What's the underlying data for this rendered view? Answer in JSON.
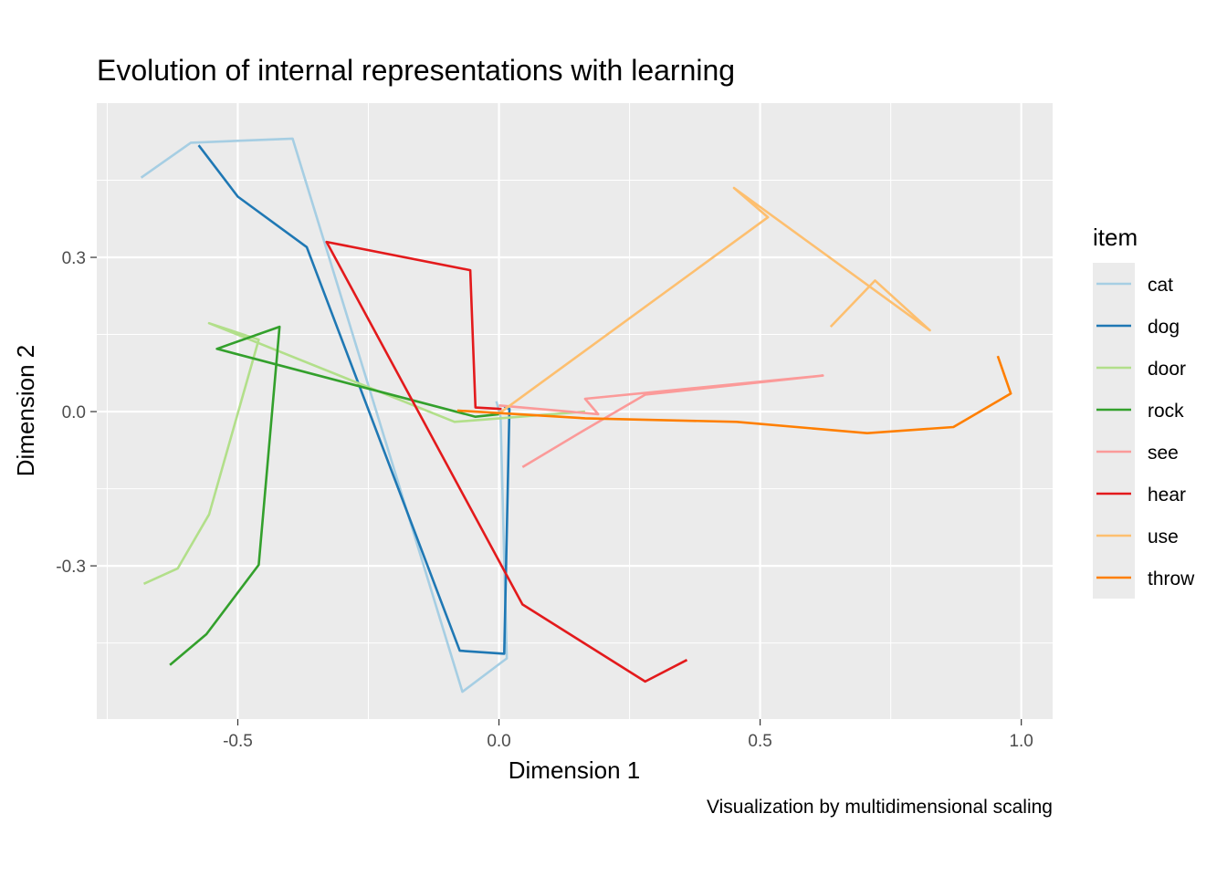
{
  "chart_data": {
    "type": "line",
    "title": "Evolution of internal representations with learning",
    "xlabel": "Dimension 1",
    "ylabel": "Dimension 2",
    "caption": "Visualization by multidimensional scaling",
    "xlim": [
      -0.77,
      1.06
    ],
    "ylim": [
      -0.598,
      0.6
    ],
    "x_ticks": [
      -0.5,
      0.0,
      0.5,
      1.0
    ],
    "x_tick_labels": [
      "-0.5",
      "0.0",
      "0.5",
      "1.0"
    ],
    "y_ticks": [
      -0.3,
      0.0,
      0.3
    ],
    "y_tick_labels": [
      "-0.3",
      "0.0",
      "0.3"
    ],
    "grid": true,
    "background": "#ebebeb",
    "legend": {
      "title": "item",
      "position": "right"
    },
    "series": [
      {
        "name": "cat",
        "color": "#a6cee3",
        "points": [
          [
            -0.685,
            0.455
          ],
          [
            -0.59,
            0.523
          ],
          [
            -0.395,
            0.531
          ],
          [
            -0.07,
            -0.545
          ],
          [
            0.015,
            -0.48
          ],
          [
            0.003,
            -0.01
          ],
          [
            -0.005,
            0.02
          ]
        ]
      },
      {
        "name": "dog",
        "color": "#1f78b4",
        "points": [
          [
            -0.575,
            0.518
          ],
          [
            -0.5,
            0.418
          ],
          [
            -0.368,
            0.32
          ],
          [
            -0.075,
            -0.465
          ],
          [
            0.01,
            -0.471
          ],
          [
            0.02,
            0.005
          ],
          [
            0.01,
            0.01
          ]
        ]
      },
      {
        "name": "door",
        "color": "#b2df8a",
        "points": [
          [
            -0.68,
            -0.335
          ],
          [
            -0.615,
            -0.305
          ],
          [
            -0.555,
            -0.2
          ],
          [
            -0.46,
            0.14
          ],
          [
            -0.555,
            0.172
          ],
          [
            -0.085,
            -0.02
          ],
          [
            0.165,
            0.0
          ]
        ]
      },
      {
        "name": "rock",
        "color": "#33a02c",
        "points": [
          [
            -0.63,
            -0.493
          ],
          [
            -0.56,
            -0.433
          ],
          [
            -0.46,
            -0.298
          ],
          [
            -0.42,
            0.165
          ],
          [
            -0.54,
            0.122
          ],
          [
            -0.045,
            -0.01
          ],
          [
            0.0,
            -0.005
          ]
        ]
      },
      {
        "name": "see",
        "color": "#fb9a99",
        "points": [
          [
            0.045,
            -0.108
          ],
          [
            0.16,
            -0.038
          ],
          [
            0.28,
            0.033
          ],
          [
            0.62,
            0.07
          ],
          [
            0.165,
            0.025
          ],
          [
            0.19,
            -0.005
          ],
          [
            0.0,
            0.012
          ]
        ]
      },
      {
        "name": "hear",
        "color": "#e31a1c",
        "points": [
          [
            0.36,
            -0.483
          ],
          [
            0.28,
            -0.525
          ],
          [
            0.045,
            -0.375
          ],
          [
            -0.33,
            0.33
          ],
          [
            -0.055,
            0.275
          ],
          [
            -0.045,
            0.008
          ],
          [
            0.005,
            0.005
          ]
        ]
      },
      {
        "name": "use",
        "color": "#fdbf6f",
        "points": [
          [
            0.635,
            0.165
          ],
          [
            0.72,
            0.255
          ],
          [
            0.825,
            0.158
          ],
          [
            0.45,
            0.435
          ],
          [
            0.515,
            0.378
          ],
          [
            0.005,
            0.0
          ],
          [
            0.0,
            -0.005
          ]
        ]
      },
      {
        "name": "throw",
        "color": "#ff7f00",
        "points": [
          [
            0.955,
            0.108
          ],
          [
            0.98,
            0.035
          ],
          [
            0.87,
            -0.03
          ],
          [
            0.705,
            -0.042
          ],
          [
            0.455,
            -0.02
          ],
          [
            0.165,
            -0.013
          ],
          [
            -0.08,
            0.002
          ]
        ]
      }
    ]
  }
}
